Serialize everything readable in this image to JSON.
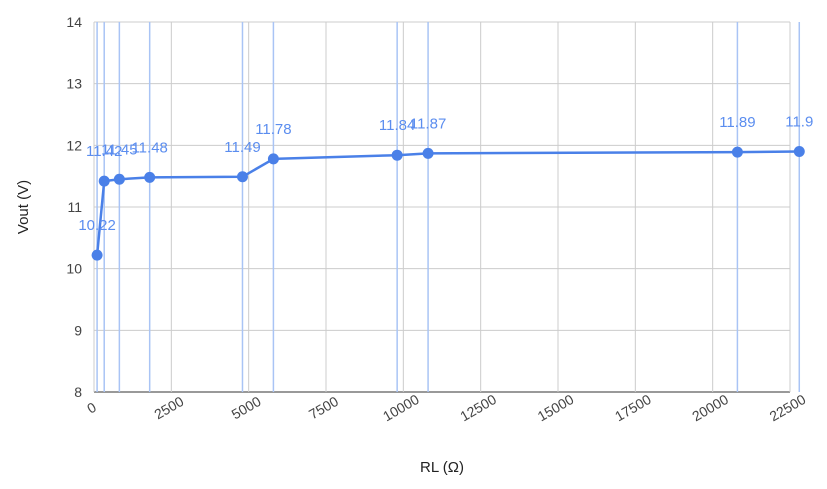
{
  "chart_data": {
    "type": "line",
    "title": "",
    "xlabel": "RL (Ω)",
    "ylabel": "Vout (V)",
    "xlim": [
      0,
      22500
    ],
    "ylim": [
      8,
      14
    ],
    "xticks": [
      "0",
      "2500",
      "5000",
      "7500",
      "10000",
      "12500",
      "15000",
      "17500",
      "20000",
      "22500"
    ],
    "yticks": [
      "8",
      "9",
      "10",
      "11",
      "12",
      "13",
      "14"
    ],
    "series": [
      {
        "x": [
          100,
          330,
          820,
          1800,
          4800,
          5800,
          9800,
          10800,
          20800,
          22800
        ],
        "y": [
          10.22,
          11.42,
          11.45,
          11.48,
          11.49,
          11.78,
          11.84,
          11.87,
          11.89,
          11.9
        ],
        "labels": [
          "10.22",
          "11.42",
          "11.45",
          "11.48",
          "11.49",
          "11.78",
          "11.84",
          "11.87",
          "11.89",
          "11.9"
        ]
      }
    ],
    "color": "#4a80e8",
    "vertical_drop_lines": true,
    "grid": true
  }
}
